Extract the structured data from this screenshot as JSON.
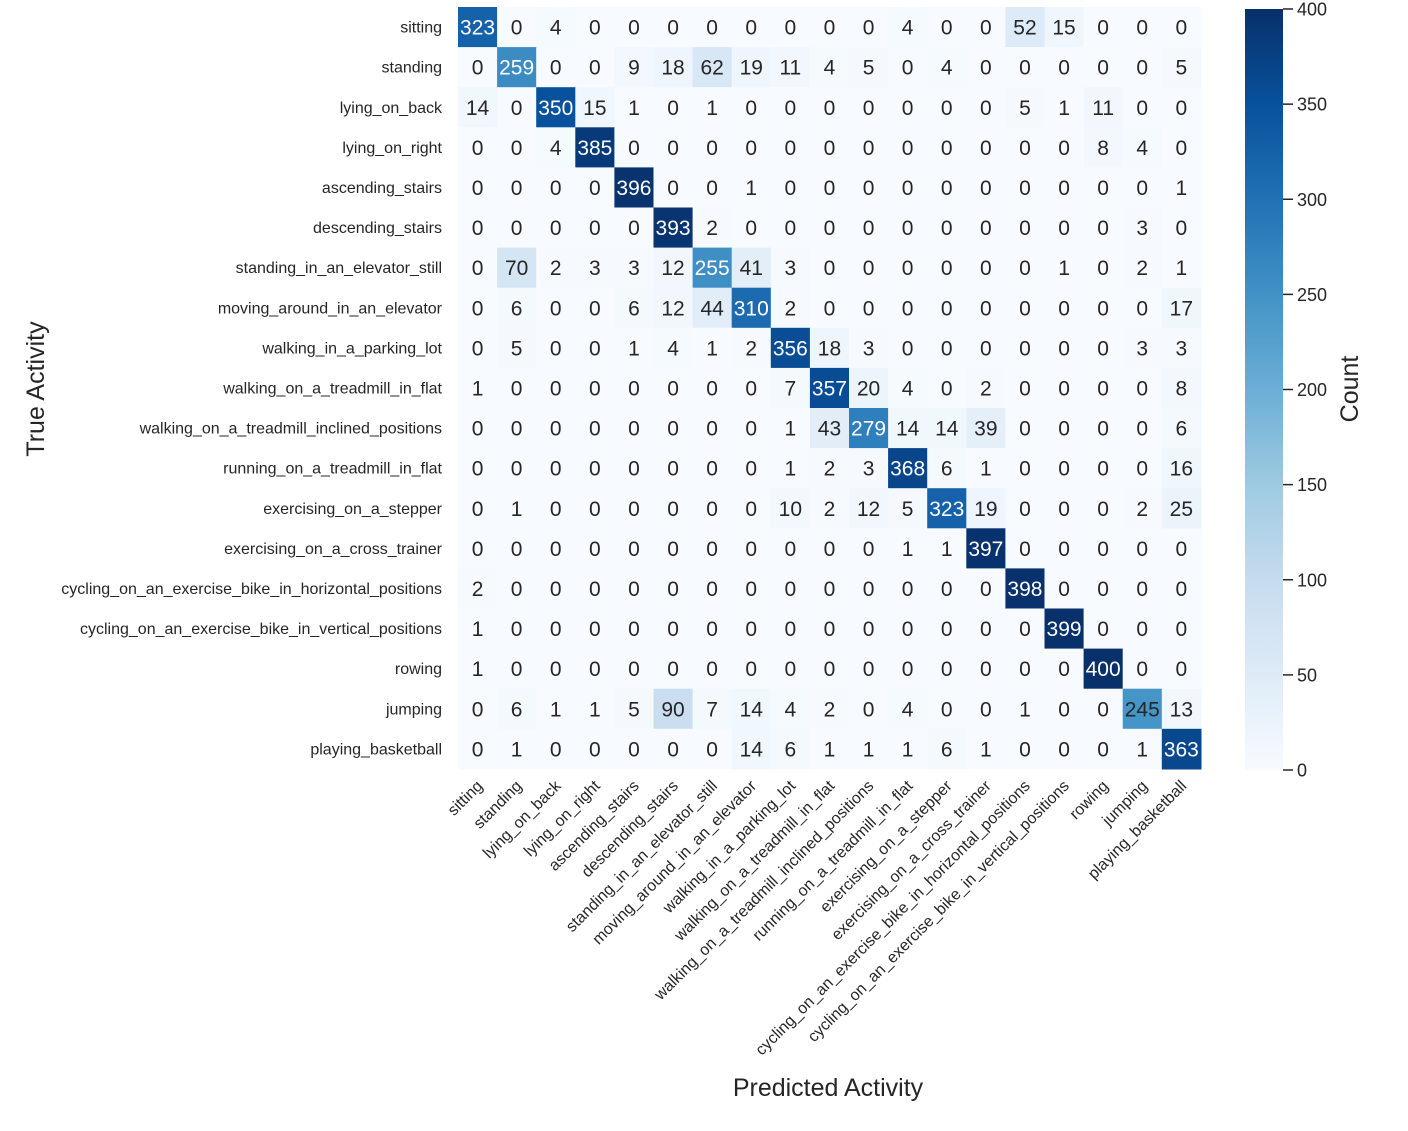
{
  "chart_data": {
    "type": "heatmap",
    "title": "",
    "xlabel": "Predicted Activity",
    "ylabel": "True Activity",
    "colorbar_label": "Count",
    "colorbar_ticks": [
      0,
      50,
      100,
      150,
      200,
      250,
      300,
      350,
      400
    ],
    "value_range": [
      0,
      400
    ],
    "colormap": "Blues",
    "colorbar_ramp": [
      "#f7fbff",
      "#deebf7",
      "#c6dbef",
      "#9ecae1",
      "#6baed6",
      "#4292c6",
      "#2171b5",
      "#08519c",
      "#08306b"
    ],
    "categories": [
      "sitting",
      "standing",
      "lying_on_back",
      "lying_on_right",
      "ascending_stairs",
      "descending_stairs",
      "standing_in_an_elevator_still",
      "moving_around_in_an_elevator",
      "walking_in_a_parking_lot",
      "walking_on_a_treadmill_in_flat",
      "walking_on_a_treadmill_inclined_positions",
      "running_on_a_treadmill_in_flat",
      "exercising_on_a_stepper",
      "exercising_on_a_cross_trainer",
      "cycling_on_an_exercise_bike_in_horizontal_positions",
      "cycling_on_an_exercise_bike_in_vertical_positions",
      "rowing",
      "jumping",
      "playing_basketball"
    ],
    "matrix": [
      [
        323,
        0,
        4,
        0,
        0,
        0,
        0,
        0,
        0,
        0,
        0,
        4,
        0,
        0,
        52,
        15,
        0,
        0,
        0
      ],
      [
        0,
        259,
        0,
        0,
        9,
        18,
        62,
        19,
        11,
        4,
        5,
        0,
        4,
        0,
        0,
        0,
        0,
        0,
        5
      ],
      [
        14,
        0,
        350,
        15,
        1,
        0,
        1,
        0,
        0,
        0,
        0,
        0,
        0,
        0,
        5,
        1,
        11,
        0,
        0
      ],
      [
        0,
        0,
        4,
        385,
        0,
        0,
        0,
        0,
        0,
        0,
        0,
        0,
        0,
        0,
        0,
        0,
        8,
        4,
        0
      ],
      [
        0,
        0,
        0,
        0,
        396,
        0,
        0,
        1,
        0,
        0,
        0,
        0,
        0,
        0,
        0,
        0,
        0,
        0,
        1
      ],
      [
        0,
        0,
        0,
        0,
        0,
        393,
        2,
        0,
        0,
        0,
        0,
        0,
        0,
        0,
        0,
        0,
        0,
        3,
        0
      ],
      [
        0,
        70,
        2,
        3,
        3,
        12,
        255,
        41,
        3,
        0,
        0,
        0,
        0,
        0,
        0,
        1,
        0,
        2,
        1
      ],
      [
        0,
        6,
        0,
        0,
        6,
        12,
        44,
        310,
        2,
        0,
        0,
        0,
        0,
        0,
        0,
        0,
        0,
        0,
        17
      ],
      [
        0,
        5,
        0,
        0,
        1,
        4,
        1,
        2,
        356,
        18,
        3,
        0,
        0,
        0,
        0,
        0,
        0,
        3,
        3
      ],
      [
        1,
        0,
        0,
        0,
        0,
        0,
        0,
        0,
        7,
        357,
        20,
        4,
        0,
        2,
        0,
        0,
        0,
        0,
        8
      ],
      [
        0,
        0,
        0,
        0,
        0,
        0,
        0,
        0,
        1,
        43,
        279,
        14,
        14,
        39,
        0,
        0,
        0,
        0,
        6
      ],
      [
        0,
        0,
        0,
        0,
        0,
        0,
        0,
        0,
        1,
        2,
        3,
        368,
        6,
        1,
        0,
        0,
        0,
        0,
        16
      ],
      [
        0,
        1,
        0,
        0,
        0,
        0,
        0,
        0,
        10,
        2,
        12,
        5,
        323,
        19,
        0,
        0,
        0,
        2,
        25
      ],
      [
        0,
        0,
        0,
        0,
        0,
        0,
        0,
        0,
        0,
        0,
        0,
        1,
        1,
        397,
        0,
        0,
        0,
        0,
        0
      ],
      [
        2,
        0,
        0,
        0,
        0,
        0,
        0,
        0,
        0,
        0,
        0,
        0,
        0,
        0,
        398,
        0,
        0,
        0,
        0
      ],
      [
        1,
        0,
        0,
        0,
        0,
        0,
        0,
        0,
        0,
        0,
        0,
        0,
        0,
        0,
        0,
        399,
        0,
        0,
        0
      ],
      [
        1,
        0,
        0,
        0,
        0,
        0,
        0,
        0,
        0,
        0,
        0,
        0,
        0,
        0,
        0,
        0,
        400,
        0,
        0
      ],
      [
        0,
        6,
        1,
        1,
        5,
        90,
        7,
        14,
        4,
        2,
        0,
        4,
        0,
        0,
        1,
        0,
        0,
        245,
        13
      ],
      [
        0,
        1,
        0,
        0,
        0,
        0,
        0,
        14,
        6,
        1,
        1,
        1,
        6,
        1,
        0,
        0,
        0,
        1,
        363
      ]
    ]
  }
}
